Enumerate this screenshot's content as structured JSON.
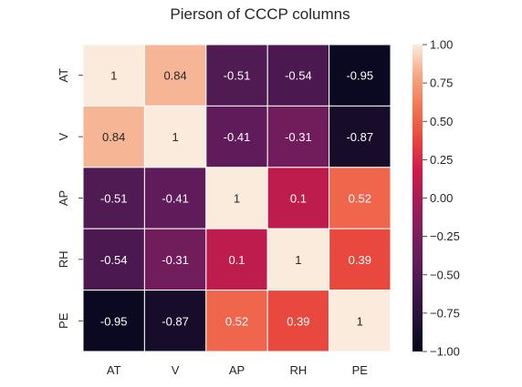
{
  "chart_data": {
    "type": "heatmap",
    "title": "Pierson of CCCP columns",
    "rows": [
      "AT",
      "V",
      "AP",
      "RH",
      "PE"
    ],
    "columns": [
      "AT",
      "V",
      "AP",
      "RH",
      "PE"
    ],
    "values": [
      [
        1,
        0.84,
        -0.51,
        -0.54,
        -0.95
      ],
      [
        0.84,
        1,
        -0.41,
        -0.31,
        -0.87
      ],
      [
        -0.51,
        -0.41,
        1,
        0.1,
        0.52
      ],
      [
        -0.54,
        -0.31,
        0.1,
        1,
        0.39
      ],
      [
        -0.95,
        -0.87,
        0.52,
        0.39,
        1
      ]
    ],
    "value_labels": [
      [
        "1",
        "0.84",
        "-0.51",
        "-0.54",
        "-0.95"
      ],
      [
        "0.84",
        "1",
        "-0.41",
        "-0.31",
        "-0.87"
      ],
      [
        "-0.51",
        "-0.41",
        "1",
        "0.1",
        "0.52"
      ],
      [
        "-0.54",
        "-0.31",
        "0.1",
        "1",
        "0.39"
      ],
      [
        "-0.95",
        "-0.87",
        "0.52",
        "0.39",
        "1"
      ]
    ],
    "colorbar": {
      "range": [
        -1.0,
        1.0
      ],
      "ticks": [
        1.0,
        0.75,
        0.5,
        0.25,
        0.0,
        -0.25,
        -0.5,
        -0.75,
        -1.0
      ],
      "tick_labels": [
        "1.00",
        "0.75",
        "0.50",
        "0.25",
        "0.00",
        "−0.25",
        "−0.50",
        "−0.75",
        "−1.00"
      ],
      "colormap": "rocket"
    }
  }
}
